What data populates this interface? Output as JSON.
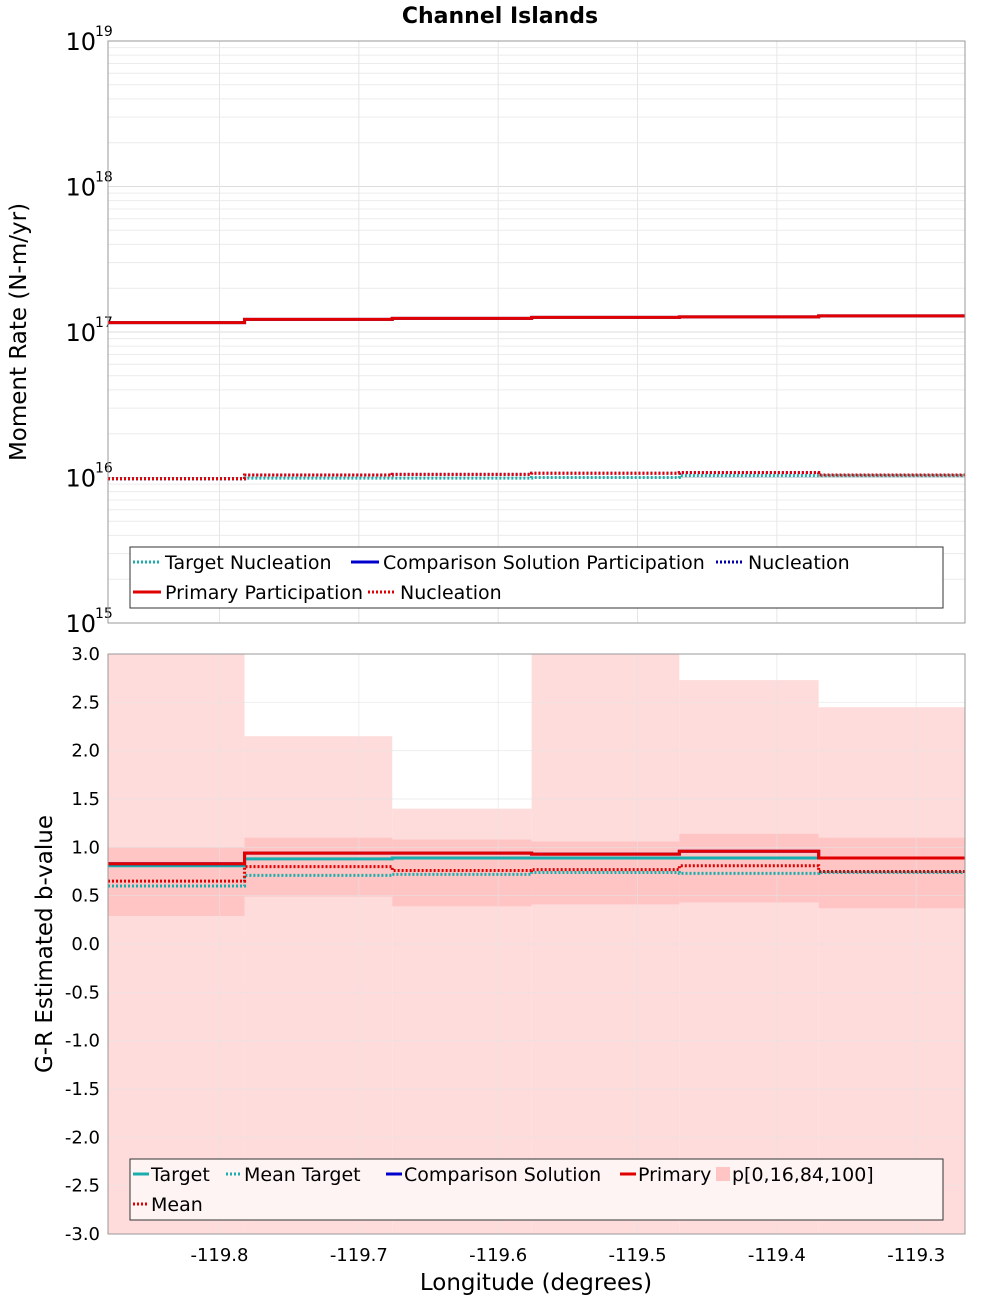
{
  "chart_data": [
    {
      "type": "line",
      "panel": "moment-rate",
      "title": "Channel Islands",
      "ylabel": "Moment Rate (N-m/yr)",
      "xlabel": "",
      "yscale": "log",
      "ylim_exp": [
        15,
        19
      ],
      "xlim": [
        -119.88,
        -119.265
      ],
      "y_tick_labels": [
        {
          "base": "10",
          "exp": "19"
        },
        {
          "base": "10",
          "exp": "18"
        },
        {
          "base": "10",
          "exp": "17"
        },
        {
          "base": "10",
          "exp": "16"
        },
        {
          "base": "10",
          "exp": "15"
        }
      ],
      "bin_edges": [
        -119.88,
        -119.782,
        -119.676,
        -119.576,
        -119.47,
        -119.37,
        -119.265
      ],
      "series": [
        {
          "name": "Target Nucleation",
          "color": "#1aadad",
          "style": "dotted",
          "values": [
            9800000000000000.0,
            9900000000000000.0,
            9900000000000000.0,
            1e+16,
            1.03e+16,
            1.03e+16
          ]
        },
        {
          "name": "Comparison Solution Participation",
          "color": "#0000cc",
          "style": "solid",
          "values": [
            1.16e+17,
            1.22e+17,
            1.24e+17,
            1.26e+17,
            1.27e+17,
            1.29e+17
          ]
        },
        {
          "name": "Nucleation",
          "color": "#0000aa",
          "style": "dotted",
          "values": [
            9800000000000000.0,
            1.04e+16,
            1.05e+16,
            1.07e+16,
            1.08e+16,
            1.04e+16
          ]
        },
        {
          "name": "Primary Participation",
          "color": "#e00000",
          "style": "solid",
          "values": [
            1.16e+17,
            1.22e+17,
            1.24e+17,
            1.26e+17,
            1.27e+17,
            1.29e+17
          ]
        },
        {
          "name": "Nucleation",
          "color": "#e00000",
          "style": "dotted",
          "values": [
            9800000000000000.0,
            1.04e+16,
            1.05e+16,
            1.07e+16,
            1.08e+16,
            1.04e+16
          ]
        }
      ]
    },
    {
      "type": "line",
      "panel": "b-value",
      "title": "",
      "ylabel": "G-R Estimated b-value",
      "xlabel": "Longitude (degrees)",
      "ylim": [
        -3.0,
        3.0
      ],
      "xlim": [
        -119.88,
        -119.265
      ],
      "y_ticks": [
        3.0,
        2.5,
        2.0,
        1.5,
        1.0,
        0.5,
        0.0,
        -0.5,
        -1.0,
        -1.5,
        -2.0,
        -2.5,
        -3.0
      ],
      "y_tick_labels": [
        "3.0",
        "2.5",
        "2.0",
        "1.5",
        "1.0",
        "0.5",
        "0.0",
        "-0.5",
        "-1.0",
        "-1.5",
        "-2.0",
        "-2.5",
        "-3.0"
      ],
      "x_ticks": [
        -119.8,
        -119.7,
        -119.6,
        -119.5,
        -119.4,
        -119.3
      ],
      "x_tick_labels": [
        "-119.8",
        "-119.7",
        "-119.6",
        "-119.5",
        "-119.4",
        "-119.3"
      ],
      "bin_edges": [
        -119.88,
        -119.782,
        -119.676,
        -119.576,
        -119.47,
        -119.37,
        -119.265
      ],
      "bands": {
        "name": "p[0,16,84,100]",
        "color": "#ffc0c0",
        "outer_low": [
          -3.0,
          -3.0,
          -3.0,
          -3.0,
          -3.0,
          -3.0
        ],
        "outer_high": [
          3.0,
          2.15,
          1.4,
          3.0,
          2.73,
          2.45
        ],
        "inner_low": [
          0.29,
          0.49,
          0.39,
          0.41,
          0.43,
          0.37
        ],
        "inner_high": [
          1.0,
          1.1,
          1.08,
          1.06,
          1.14,
          1.1
        ]
      },
      "series": [
        {
          "name": "Target",
          "color": "#1aadad",
          "style": "solid",
          "values": [
            0.81,
            0.88,
            0.89,
            0.89,
            0.89,
            0.89
          ]
        },
        {
          "name": "Mean Target",
          "color": "#1aadad",
          "style": "dotted",
          "values": [
            0.6,
            0.71,
            0.72,
            0.74,
            0.73,
            0.74
          ]
        },
        {
          "name": "Comparison Solution",
          "color": "#0000cc",
          "style": "solid",
          "values": [
            0.83,
            0.94,
            0.94,
            0.93,
            0.96,
            0.89
          ]
        },
        {
          "name": "Primary",
          "color": "#e00000",
          "style": "solid",
          "values": [
            0.83,
            0.94,
            0.94,
            0.93,
            0.96,
            0.89
          ]
        },
        {
          "name": "Mean",
          "color": "#e00000",
          "style": "dotted",
          "values": [
            0.65,
            0.8,
            0.76,
            0.77,
            0.81,
            0.75
          ]
        }
      ]
    }
  ]
}
